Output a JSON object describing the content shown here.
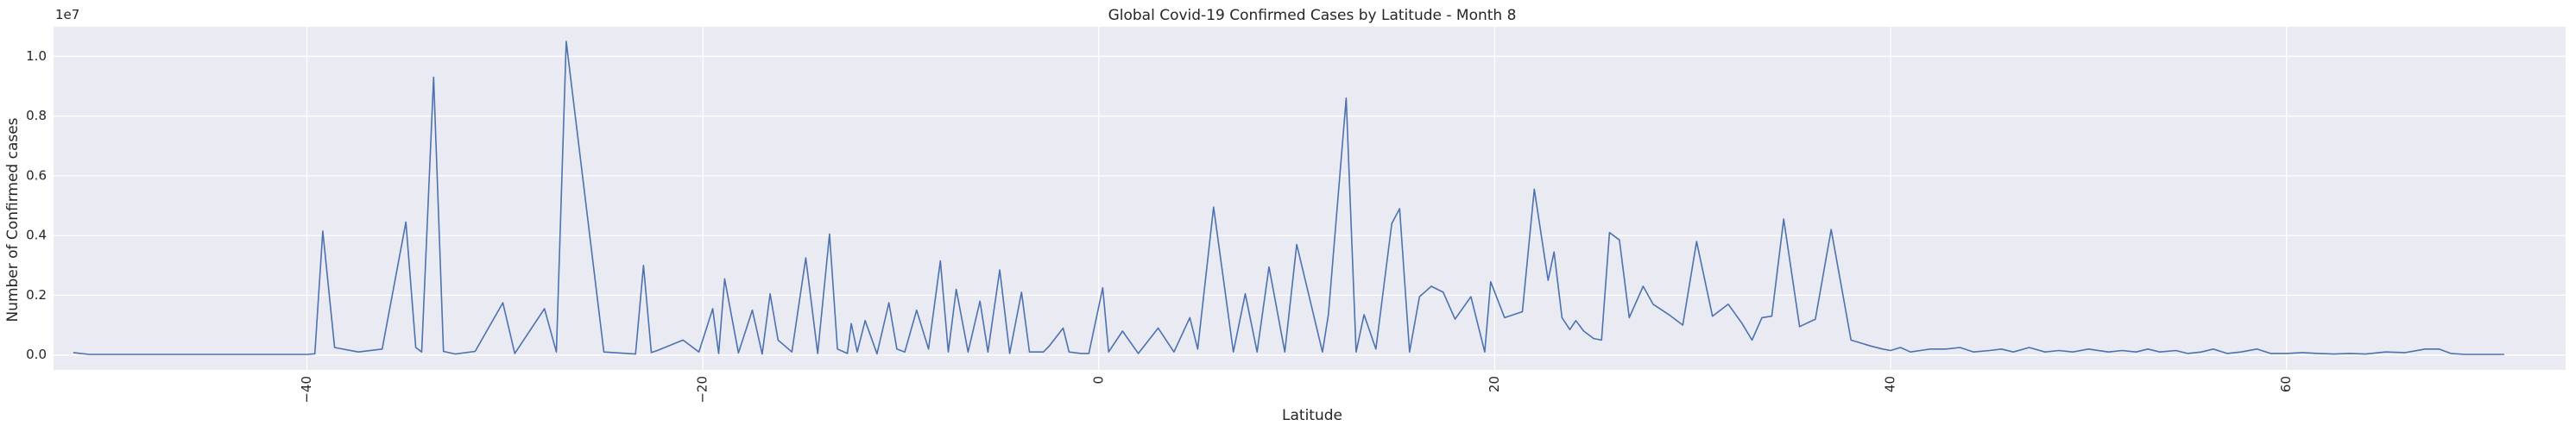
{
  "chart_data": {
    "type": "line",
    "title": "Global Covid-19 Confirmed Cases by Latitude - Month 8",
    "xlabel": "Latitude",
    "ylabel": "Number of Confirmed cases",
    "y_offset_text": "1e7",
    "xlim": [
      -52.8,
      74.1
    ],
    "ylim": [
      -500000,
      10990000
    ],
    "x_ticks": [
      -40,
      -20,
      0,
      20,
      40,
      60
    ],
    "x_tick_labels": [
      "−40",
      "−20",
      "0",
      "20",
      "40",
      "60"
    ],
    "y_ticks": [
      0,
      2000000,
      4000000,
      6000000,
      8000000,
      10000000
    ],
    "y_tick_labels": [
      "0.0",
      "0.2",
      "0.4",
      "0.6",
      "0.8",
      "1.0"
    ],
    "x_tick_rotation": 90,
    "grid": true,
    "background": "#eaeaf2",
    "line_color": "#4c72b0",
    "series": [
      {
        "x": [
          -51.8,
          -51.0,
          -48.0,
          -45.0,
          -42.0,
          -41.0,
          -40.0,
          -39.6,
          -39.2,
          -38.6,
          -37.4,
          -36.2,
          -35.0,
          -34.5,
          -34.2,
          -33.6,
          -33.1,
          -32.5,
          -31.5,
          -30.1,
          -29.5,
          -28.0,
          -27.4,
          -26.9,
          -25.0,
          -23.4,
          -23.0,
          -22.6,
          -22.3,
          -21.0,
          -20.2,
          -19.5,
          -19.2,
          -18.9,
          -18.2,
          -17.5,
          -17.0,
          -16.6,
          -16.2,
          -15.5,
          -14.8,
          -14.2,
          -13.6,
          -13.2,
          -12.7,
          -12.5,
          -12.2,
          -11.8,
          -11.2,
          -10.6,
          -10.2,
          -9.8,
          -9.2,
          -8.6,
          -8.0,
          -7.6,
          -7.2,
          -6.6,
          -6.0,
          -5.6,
          -5.0,
          -4.5,
          -3.9,
          -3.5,
          -2.8,
          -2.5,
          -1.8,
          -1.5,
          -0.9,
          -0.5,
          0.2,
          0.5,
          1.2,
          2.0,
          3.0,
          3.8,
          4.6,
          5.0,
          5.8,
          6.8,
          7.4,
          8.0,
          8.6,
          9.4,
          10.0,
          11.3,
          11.6,
          12.5,
          13.0,
          13.4,
          14.0,
          14.8,
          15.2,
          15.7,
          16.2,
          16.8,
          17.4,
          18.0,
          18.8,
          19.5,
          19.8,
          20.5,
          21.4,
          22.0,
          22.7,
          23.0,
          23.4,
          23.8,
          24.1,
          24.5,
          25.0,
          25.4,
          25.8,
          26.3,
          26.8,
          27.5,
          28.0,
          28.8,
          29.5,
          30.2,
          31.0,
          31.8,
          32.5,
          33.0,
          33.5,
          34.0,
          34.6,
          35.4,
          36.2,
          37.0,
          38.0,
          39.0,
          39.6,
          40.0,
          40.5,
          41.0,
          41.5,
          42.0,
          42.8,
          43.5,
          44.2,
          45.0,
          45.6,
          46.2,
          47.0,
          47.8,
          48.5,
          49.2,
          50.0,
          51.0,
          51.7,
          52.4,
          53.0,
          53.6,
          54.4,
          55.0,
          55.7,
          56.3,
          57.0,
          57.7,
          58.5,
          59.2,
          60.0,
          60.8,
          61.6,
          62.4,
          63.2,
          64.0,
          65.0,
          66.0,
          67.0,
          67.7,
          68.3,
          69.0,
          71.0
        ],
        "values": [
          80000,
          20000,
          20000,
          20000,
          20000,
          20000,
          20000,
          40000,
          4150000,
          250000,
          100000,
          200000,
          4450000,
          250000,
          100000,
          9300000,
          120000,
          30000,
          120000,
          1750000,
          50000,
          1550000,
          100000,
          10500000,
          100000,
          30000,
          3000000,
          80000,
          150000,
          500000,
          100000,
          1550000,
          50000,
          2550000,
          70000,
          1500000,
          30000,
          2050000,
          500000,
          100000,
          3250000,
          50000,
          4050000,
          200000,
          50000,
          1050000,
          100000,
          1150000,
          40000,
          1750000,
          200000,
          100000,
          1500000,
          200000,
          3150000,
          100000,
          2200000,
          100000,
          1800000,
          100000,
          2850000,
          50000,
          2100000,
          100000,
          100000,
          300000,
          900000,
          100000,
          50000,
          50000,
          2250000,
          100000,
          800000,
          50000,
          900000,
          100000,
          1250000,
          200000,
          4950000,
          100000,
          2050000,
          100000,
          2950000,
          100000,
          3700000,
          100000,
          1350000,
          8600000,
          100000,
          1350000,
          200000,
          4400000,
          4900000,
          100000,
          1950000,
          2300000,
          2100000,
          1200000,
          1950000,
          100000,
          2450000,
          1250000,
          1450000,
          5550000,
          2500000,
          3450000,
          1250000,
          850000,
          1150000,
          800000,
          550000,
          500000,
          4100000,
          3850000,
          1250000,
          2300000,
          1700000,
          1350000,
          1000000,
          3800000,
          1300000,
          1700000,
          1050000,
          500000,
          1250000,
          1300000,
          4550000,
          950000,
          1200000,
          4200000,
          500000,
          300000,
          200000,
          150000,
          250000,
          100000,
          150000,
          200000,
          200000,
          250000,
          100000,
          150000,
          200000,
          100000,
          250000,
          100000,
          150000,
          100000,
          200000,
          100000,
          150000,
          100000,
          200000,
          100000,
          150000,
          50000,
          100000,
          200000,
          50000,
          100000,
          200000,
          50000,
          50000,
          80000,
          50000,
          30000,
          50000,
          30000,
          100000,
          80000,
          200000,
          200000,
          50000,
          20000,
          20000
        ]
      }
    ]
  }
}
